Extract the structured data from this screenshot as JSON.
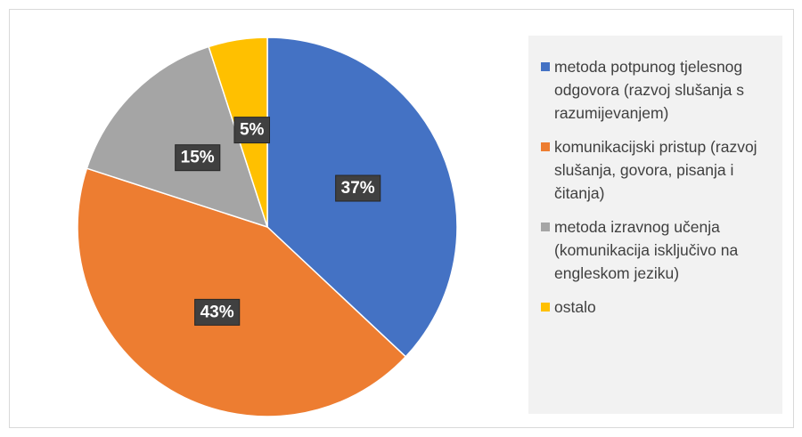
{
  "chart_data": {
    "type": "pie",
    "categories": [
      "metoda potpunog tjelesnog odgovora (razvoj slušanja s razumijevanjem)",
      "komunikacijski pristup (razvoj slušanja, govora, pisanja i čitanja)",
      "metoda izravnog učenja (komunikacija isključivo na engleskom jeziku)",
      "ostalo"
    ],
    "values": [
      37,
      43,
      15,
      5
    ],
    "value_labels": [
      "37%",
      "43%",
      "15%",
      "5%"
    ],
    "colors": [
      "#4472c4",
      "#ed7d31",
      "#a5a5a5",
      "#ffc000"
    ],
    "legend": "right"
  }
}
